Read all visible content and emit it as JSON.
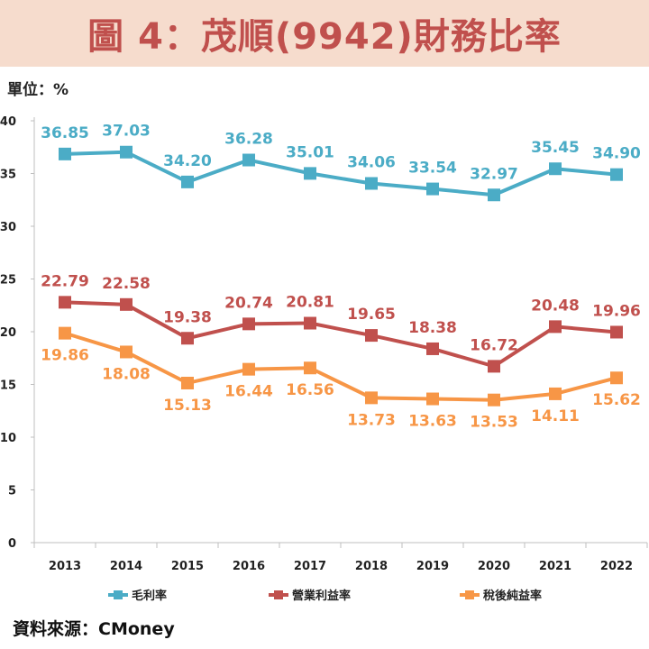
{
  "title": "圖 4：茂順(9942)財務比率",
  "unit_label": "單位：%",
  "source": "資料來源：CMoney",
  "colors": {
    "title_bg": "#f6dccd",
    "title_text": "#c0504d"
  },
  "chart_data": {
    "type": "line",
    "x": [
      "2013",
      "2014",
      "2015",
      "2016",
      "2017",
      "2018",
      "2019",
      "2020",
      "2021",
      "2022"
    ],
    "ylim": [
      0,
      40
    ],
    "yticks": [
      0,
      5,
      10,
      15,
      20,
      25,
      30,
      35,
      40
    ],
    "grid": false,
    "legend_position": "bottom",
    "series": [
      {
        "name": "毛利率",
        "color": "#4bacc6",
        "label_position": "above",
        "values": [
          36.85,
          37.03,
          34.2,
          36.28,
          35.01,
          34.06,
          33.54,
          32.97,
          35.45,
          34.9
        ],
        "labels": [
          "36.85",
          "37.03",
          "34.20",
          "36.28",
          "35.01",
          "34.06",
          "33.54",
          "32.97",
          "35.45",
          "34.90"
        ]
      },
      {
        "name": "營業利益率",
        "color": "#c0504d",
        "label_position": "above",
        "values": [
          22.79,
          22.58,
          19.38,
          20.74,
          20.81,
          19.65,
          18.38,
          16.72,
          20.48,
          19.96
        ],
        "labels": [
          "22.79",
          "22.58",
          "19.38",
          "20.74",
          "20.81",
          "19.65",
          "18.38",
          "16.72",
          "20.48",
          "19.96"
        ]
      },
      {
        "name": "稅後純益率",
        "color": "#f79646",
        "label_position": "below",
        "values": [
          19.86,
          18.08,
          15.13,
          16.44,
          16.56,
          13.73,
          13.63,
          13.53,
          14.11,
          15.62
        ],
        "labels": [
          "19.86",
          "18.08",
          "15.13",
          "16.44",
          "16.56",
          "13.73",
          "13.63",
          "13.53",
          "14.11",
          "15.62"
        ]
      }
    ]
  }
}
